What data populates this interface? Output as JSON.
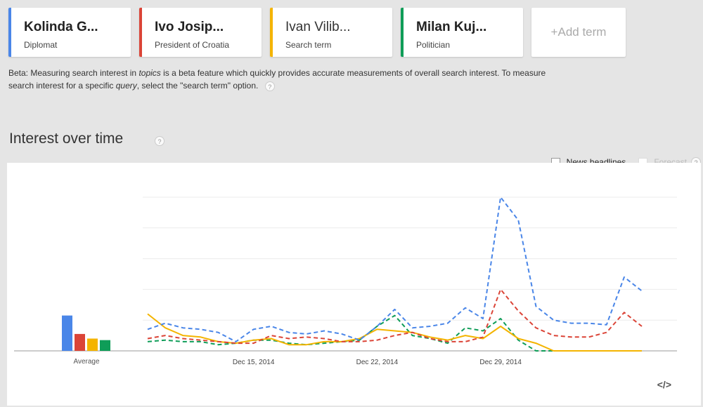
{
  "terms": [
    {
      "title": "Kolinda G...",
      "subtitle": "Diplomat",
      "color": "#4a86e8",
      "light": false
    },
    {
      "title": "Ivo Josip...",
      "subtitle": "President of Croatia",
      "color": "#db4437",
      "light": false
    },
    {
      "title": "Ivan Vilib...",
      "subtitle": "Search term",
      "color": "#f4b400",
      "light": true
    },
    {
      "title": "Milan Kuj...",
      "subtitle": "Politician",
      "color": "#0f9d58",
      "light": false
    }
  ],
  "add_term_label": "+Add term",
  "beta": {
    "part1": "Beta: Measuring search interest in ",
    "em1": "topics",
    "part2": " is a beta feature which quickly provides accurate measurements of overall search interest. To measure search interest for a specific ",
    "em2": "query",
    "part3": ", select the \"search term\" option."
  },
  "help_glyph": "?",
  "section_title": "Interest over time",
  "options": {
    "news_headlines": "News headlines",
    "forecast": "Forecast"
  },
  "embed_label": "</>",
  "chart_data": {
    "type": "line",
    "x_tick_labels": [
      "Dec 15, 2014",
      "Dec 22, 2014",
      "Dec 29, 2014"
    ],
    "x_tick_index": [
      6,
      13,
      20
    ],
    "ylim": [
      0,
      100
    ],
    "grid": true,
    "series": [
      {
        "color": "#4a86e8",
        "average": 23,
        "values": [
          14,
          18,
          15,
          14,
          12,
          6,
          14,
          16,
          12,
          11,
          13,
          11,
          7,
          16,
          27,
          15,
          16,
          18,
          28,
          21,
          100,
          85,
          29,
          20,
          18,
          18,
          17,
          48,
          39
        ]
      },
      {
        "color": "#db4437",
        "average": 11,
        "values": [
          8,
          10,
          8,
          7,
          6,
          5,
          5,
          10,
          8,
          9,
          8,
          6,
          6,
          7,
          10,
          12,
          8,
          6,
          6,
          9,
          40,
          26,
          15,
          10,
          9,
          9,
          12,
          25,
          16
        ]
      },
      {
        "color": "#f4b400",
        "average": 8,
        "values": [
          24,
          15,
          10,
          9,
          6,
          5,
          7,
          8,
          4,
          4,
          6,
          6,
          8,
          14,
          13,
          12,
          9,
          7,
          10,
          8,
          16,
          8,
          5,
          0,
          0,
          0,
          0,
          0,
          0
        ]
      },
      {
        "color": "#0f9d58",
        "average": 7,
        "values": [
          6,
          7,
          6,
          6,
          4,
          5,
          7,
          7,
          5,
          4,
          5,
          6,
          7,
          16,
          23,
          10,
          8,
          5,
          15,
          13,
          21,
          7,
          0,
          0,
          0,
          0,
          0,
          0,
          0
        ]
      }
    ],
    "average_label": "Average"
  }
}
